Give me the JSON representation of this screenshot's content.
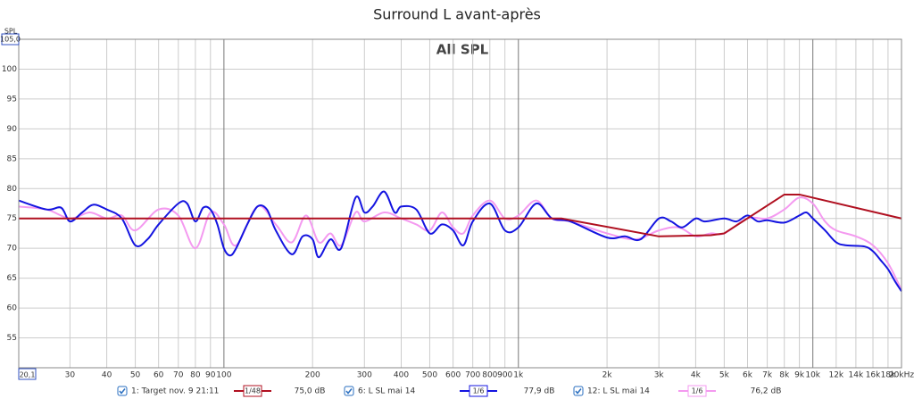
{
  "chart_data": {
    "type": "line",
    "title": "Surround L avant-après",
    "subtitle": "All SPL",
    "y_label": "SPL",
    "log_x": true,
    "grid": true,
    "xlim": [
      20.1,
      20000
    ],
    "ylim": [
      50,
      105
    ],
    "xticks": [
      {
        "value": 20.1,
        "label": "20,1"
      },
      30,
      40,
      50,
      60,
      70,
      80,
      90,
      100,
      200,
      300,
      400,
      500,
      600,
      700,
      800,
      900,
      {
        "value": 1000,
        "label": "1k"
      },
      {
        "value": 2000,
        "label": "2k"
      },
      {
        "value": 3000,
        "label": "3k"
      },
      {
        "value": 4000,
        "label": "4k"
      },
      {
        "value": 5000,
        "label": "5k"
      },
      {
        "value": 6000,
        "label": "6k"
      },
      {
        "value": 7000,
        "label": "7k"
      },
      {
        "value": 8000,
        "label": "8k"
      },
      {
        "value": 9000,
        "label": "9k"
      },
      {
        "value": 10000,
        "label": "10k"
      },
      {
        "value": 12000,
        "label": "12k"
      },
      {
        "value": 14000,
        "label": "14k"
      },
      {
        "value": 16000,
        "label": "16k"
      },
      {
        "value": 18000,
        "label": "18k"
      },
      {
        "value": 20000,
        "label": "20kHz"
      }
    ],
    "yticks": [
      55,
      60,
      65,
      70,
      75,
      80,
      85,
      90,
      95,
      100,
      {
        "value": 105,
        "label": "105,0"
      }
    ],
    "series": [
      {
        "name": "1: Target nov. 9 21:11",
        "color": "#b01020",
        "smoothing": "1/48",
        "level": "75,0 dB",
        "x": [
          20.1,
          1400,
          3000,
          4500,
          5000,
          8000,
          9000,
          20000
        ],
        "values": [
          75,
          75,
          72,
          72.2,
          72.5,
          79,
          79,
          75
        ]
      },
      {
        "name": "6: L SL mai 14",
        "color": "#1414e0",
        "smoothing": "1/6",
        "level": "77,9 dB",
        "x": [
          20.1,
          25,
          28,
          30,
          33,
          36,
          40,
          45,
          50,
          55,
          60,
          70,
          75,
          80,
          85,
          90,
          95,
          100,
          105,
          110,
          120,
          130,
          140,
          150,
          170,
          185,
          200,
          210,
          230,
          250,
          280,
          300,
          320,
          350,
          380,
          400,
          450,
          500,
          550,
          600,
          650,
          700,
          800,
          900,
          1000,
          1150,
          1300,
          1500,
          2000,
          2300,
          2600,
          3000,
          3300,
          3600,
          4000,
          4300,
          5000,
          5500,
          6000,
          6500,
          7000,
          8000,
          9000,
          9500,
          10000,
          11000,
          12000,
          13000,
          15000,
          16000,
          17000,
          18000,
          19000,
          20000
        ],
        "values": [
          78,
          76.5,
          76.8,
          74.5,
          76,
          77.3,
          76.5,
          75,
          70.5,
          71.5,
          74,
          77.5,
          77.5,
          74.5,
          76.8,
          76.5,
          74,
          70,
          68.8,
          70,
          74,
          77,
          76.5,
          73,
          69,
          72,
          71.5,
          68.5,
          71.5,
          70,
          78.5,
          76,
          77,
          79.5,
          76,
          77,
          76.5,
          72.5,
          74,
          73,
          70.5,
          74.5,
          77.5,
          73,
          73.5,
          77.5,
          75,
          74.5,
          71.8,
          72,
          71.5,
          75,
          74.5,
          73.5,
          75,
          74.5,
          75,
          74.5,
          75.5,
          74.5,
          74.7,
          74.3,
          75.5,
          76,
          75,
          73,
          71,
          70.5,
          70.3,
          69.5,
          68,
          66.5,
          64.5,
          62.8
        ]
      },
      {
        "name": "12: L SL mai 14",
        "color": "#f49af0",
        "smoothing": "1/6",
        "level": "76,2 dB",
        "x": [
          20.1,
          25,
          30,
          35,
          40,
          45,
          50,
          60,
          70,
          80,
          90,
          100,
          110,
          130,
          150,
          170,
          190,
          210,
          230,
          250,
          280,
          300,
          350,
          400,
          450,
          500,
          550,
          600,
          650,
          700,
          800,
          900,
          1000,
          1150,
          1300,
          1500,
          2000,
          2500,
          3000,
          3500,
          4000,
          4500,
          5000,
          6000,
          7000,
          8000,
          9000,
          10000,
          11000,
          12000,
          14000,
          16000,
          18000,
          20000
        ],
        "values": [
          77,
          76.5,
          75,
          76,
          75,
          75.5,
          73,
          76.5,
          75.5,
          70,
          76,
          74,
          70.5,
          77,
          74,
          71,
          75.5,
          71,
          72.5,
          70.5,
          76,
          74.5,
          76,
          75,
          74,
          73,
          76,
          73.5,
          72.5,
          75.5,
          78,
          75,
          75.5,
          78,
          75,
          74.5,
          72.5,
          71.5,
          73,
          73.5,
          72,
          72.5,
          72.5,
          75,
          75,
          76.5,
          78.5,
          77.5,
          74.5,
          73,
          72,
          70.5,
          67.5,
          63
        ]
      }
    ]
  }
}
